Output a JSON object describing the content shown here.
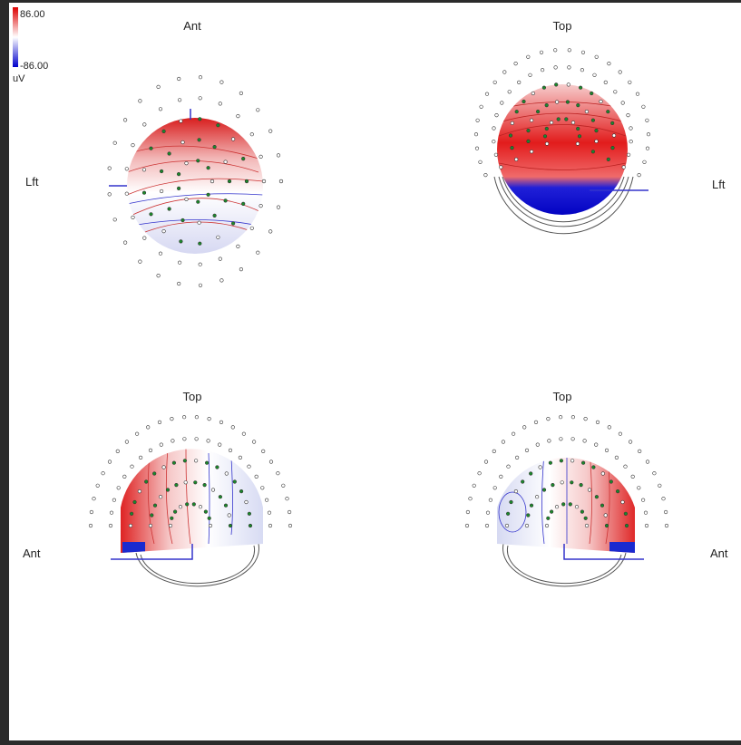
{
  "colorbar": {
    "max": "86.00",
    "min": "-86.00",
    "unit": "uV"
  },
  "views": [
    {
      "top_label": "Ant",
      "side_label": "Lft"
    },
    {
      "top_label": "Top",
      "side_label": "Lft"
    },
    {
      "top_label": "Top",
      "side_label": "Ant"
    },
    {
      "top_label": "Top",
      "side_label": "Ant"
    }
  ]
}
